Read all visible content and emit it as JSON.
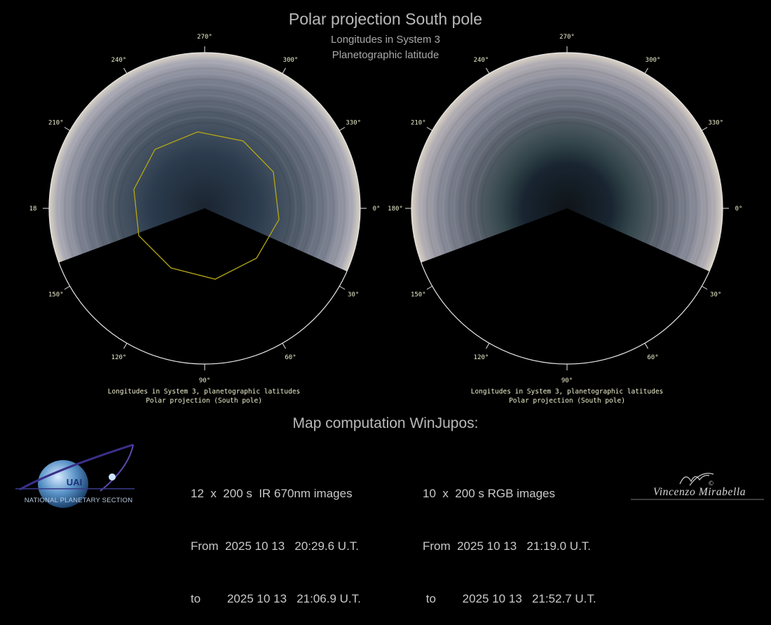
{
  "header": {
    "title": "Polar projection South pole",
    "subtitle_1": "Longitudes in System 3",
    "subtitle_2": "Planetographic latitude"
  },
  "plots": [
    {
      "name": "IR 670nm",
      "tick_labels": [
        "270°",
        "240°",
        "210°",
        "18",
        "150°",
        "120°",
        "90°",
        "60°",
        "30°",
        "0°",
        "330°",
        "300°"
      ],
      "caption_1": "Longitudes in System 3, planetographic latitudes",
      "caption_2": "Polar projection (South pole)",
      "has_outline": true
    },
    {
      "name": "RGB",
      "tick_labels": [
        "270°",
        "240°",
        "210°",
        "180°",
        "150°",
        "120°",
        "90°",
        "60°",
        "30°",
        "0°",
        "330°",
        "300°"
      ],
      "caption_1": "Longitudes in System 3, planetographic latitudes",
      "caption_2": "Polar projection (South pole)",
      "has_outline": false
    }
  ],
  "footer": {
    "map_heading": "Map computation WinJupos:",
    "left": {
      "line_1": "12  x  200 s  IR 670nm images",
      "line_2": "From  2025 10 13   20:29.6 U.T.",
      "line_3": "to        2025 10 13   21:06.9 U.T."
    },
    "right": {
      "line_1": "10  x  200 s RGB images",
      "line_2": "From  2025 10 13   21:19.0 U.T.",
      "line_3": " to        2025 10 13   21:52.7 U.T."
    },
    "logo_acronym": "UAI",
    "logo_text": "NATIONAL PLANETARY SECTION",
    "signature": "Vincenzo Mirabella",
    "copyright": "©"
  },
  "colors": {
    "background": "#000000",
    "circle": "#e6e6e6",
    "outline": "#b5a814",
    "tick_label": "#f0f0d0"
  }
}
